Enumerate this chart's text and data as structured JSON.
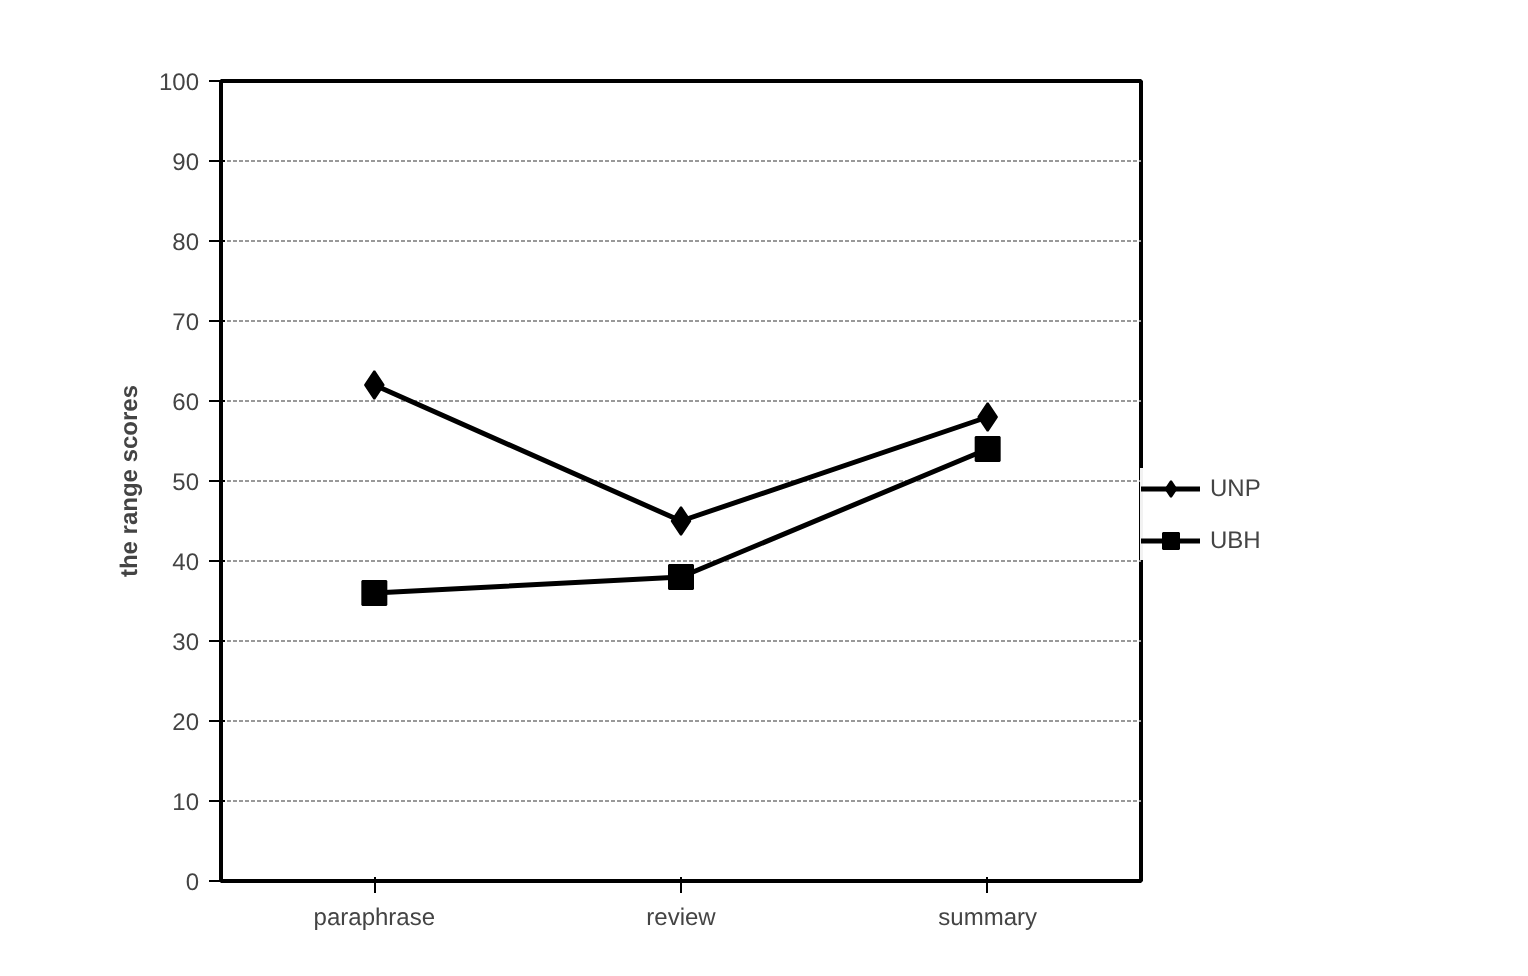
{
  "chart_data": {
    "type": "line",
    "ylabel": "the range scores",
    "categories": [
      "paraphrase",
      "review",
      "summary"
    ],
    "series": [
      {
        "name": "UNP",
        "color": "#000000",
        "marker": "diamond",
        "values": [
          62,
          45,
          58
        ]
      },
      {
        "name": "UBH",
        "color": "#000000",
        "marker": "square",
        "values": [
          36,
          38,
          54
        ]
      }
    ],
    "ylim": [
      0,
      100
    ],
    "yticks": [
      0,
      10,
      20,
      30,
      40,
      50,
      60,
      70,
      80,
      90,
      100
    ],
    "grid": "y",
    "legend": "right",
    "line_style": "solid"
  }
}
